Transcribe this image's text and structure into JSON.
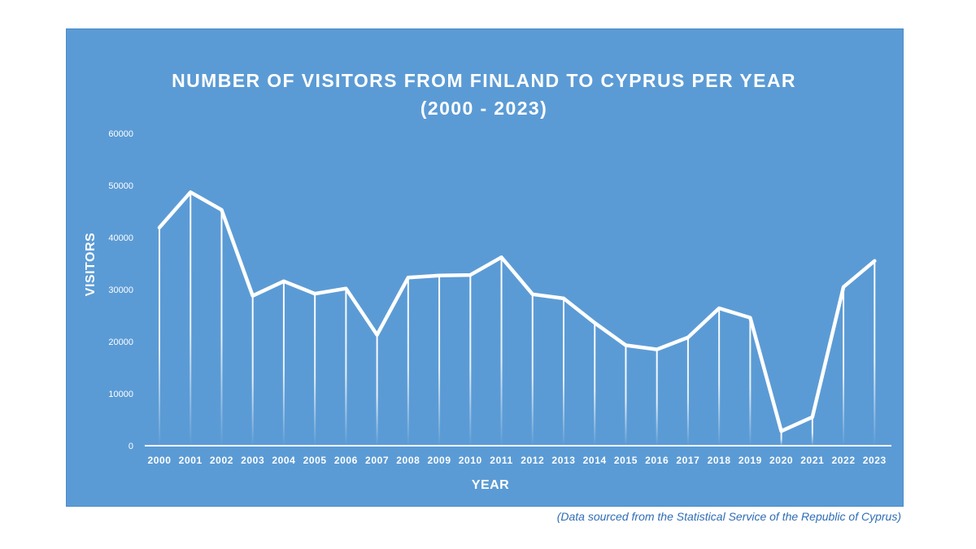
{
  "chart_data": {
    "type": "line",
    "title": [
      "NUMBER OF VISITORS FROM FINLAND TO CYPRUS PER YEAR",
      "(2000 - 2023)"
    ],
    "xlabel": "YEAR",
    "ylabel": "VISITORS",
    "ylim": [
      0,
      60000
    ],
    "yticks": [
      "0",
      "10000",
      "20000",
      "30000",
      "40000",
      "50000",
      "60000"
    ],
    "categories": [
      "2000",
      "2001",
      "2002",
      "2003",
      "2004",
      "2005",
      "2006",
      "2007",
      "2008",
      "2009",
      "2010",
      "2011",
      "2012",
      "2013",
      "2014",
      "2015",
      "2016",
      "2017",
      "2018",
      "2019",
      "2020",
      "2021",
      "2022",
      "2023"
    ],
    "values": [
      41900,
      48700,
      45300,
      28800,
      31600,
      29200,
      30200,
      21300,
      32300,
      32700,
      32800,
      36200,
      29100,
      28300,
      23600,
      19300,
      18500,
      20800,
      26400,
      24600,
      2800,
      5500,
      30500,
      35500
    ],
    "grid": false,
    "legend": "none",
    "drop_lines": true,
    "colors": {
      "background": "#5b9bd5",
      "line": "#ffffff",
      "text": "#ffffff",
      "source": "#2e6db5"
    }
  },
  "source": "(Data sourced from the Statistical Service of the Republic of Cyprus)"
}
